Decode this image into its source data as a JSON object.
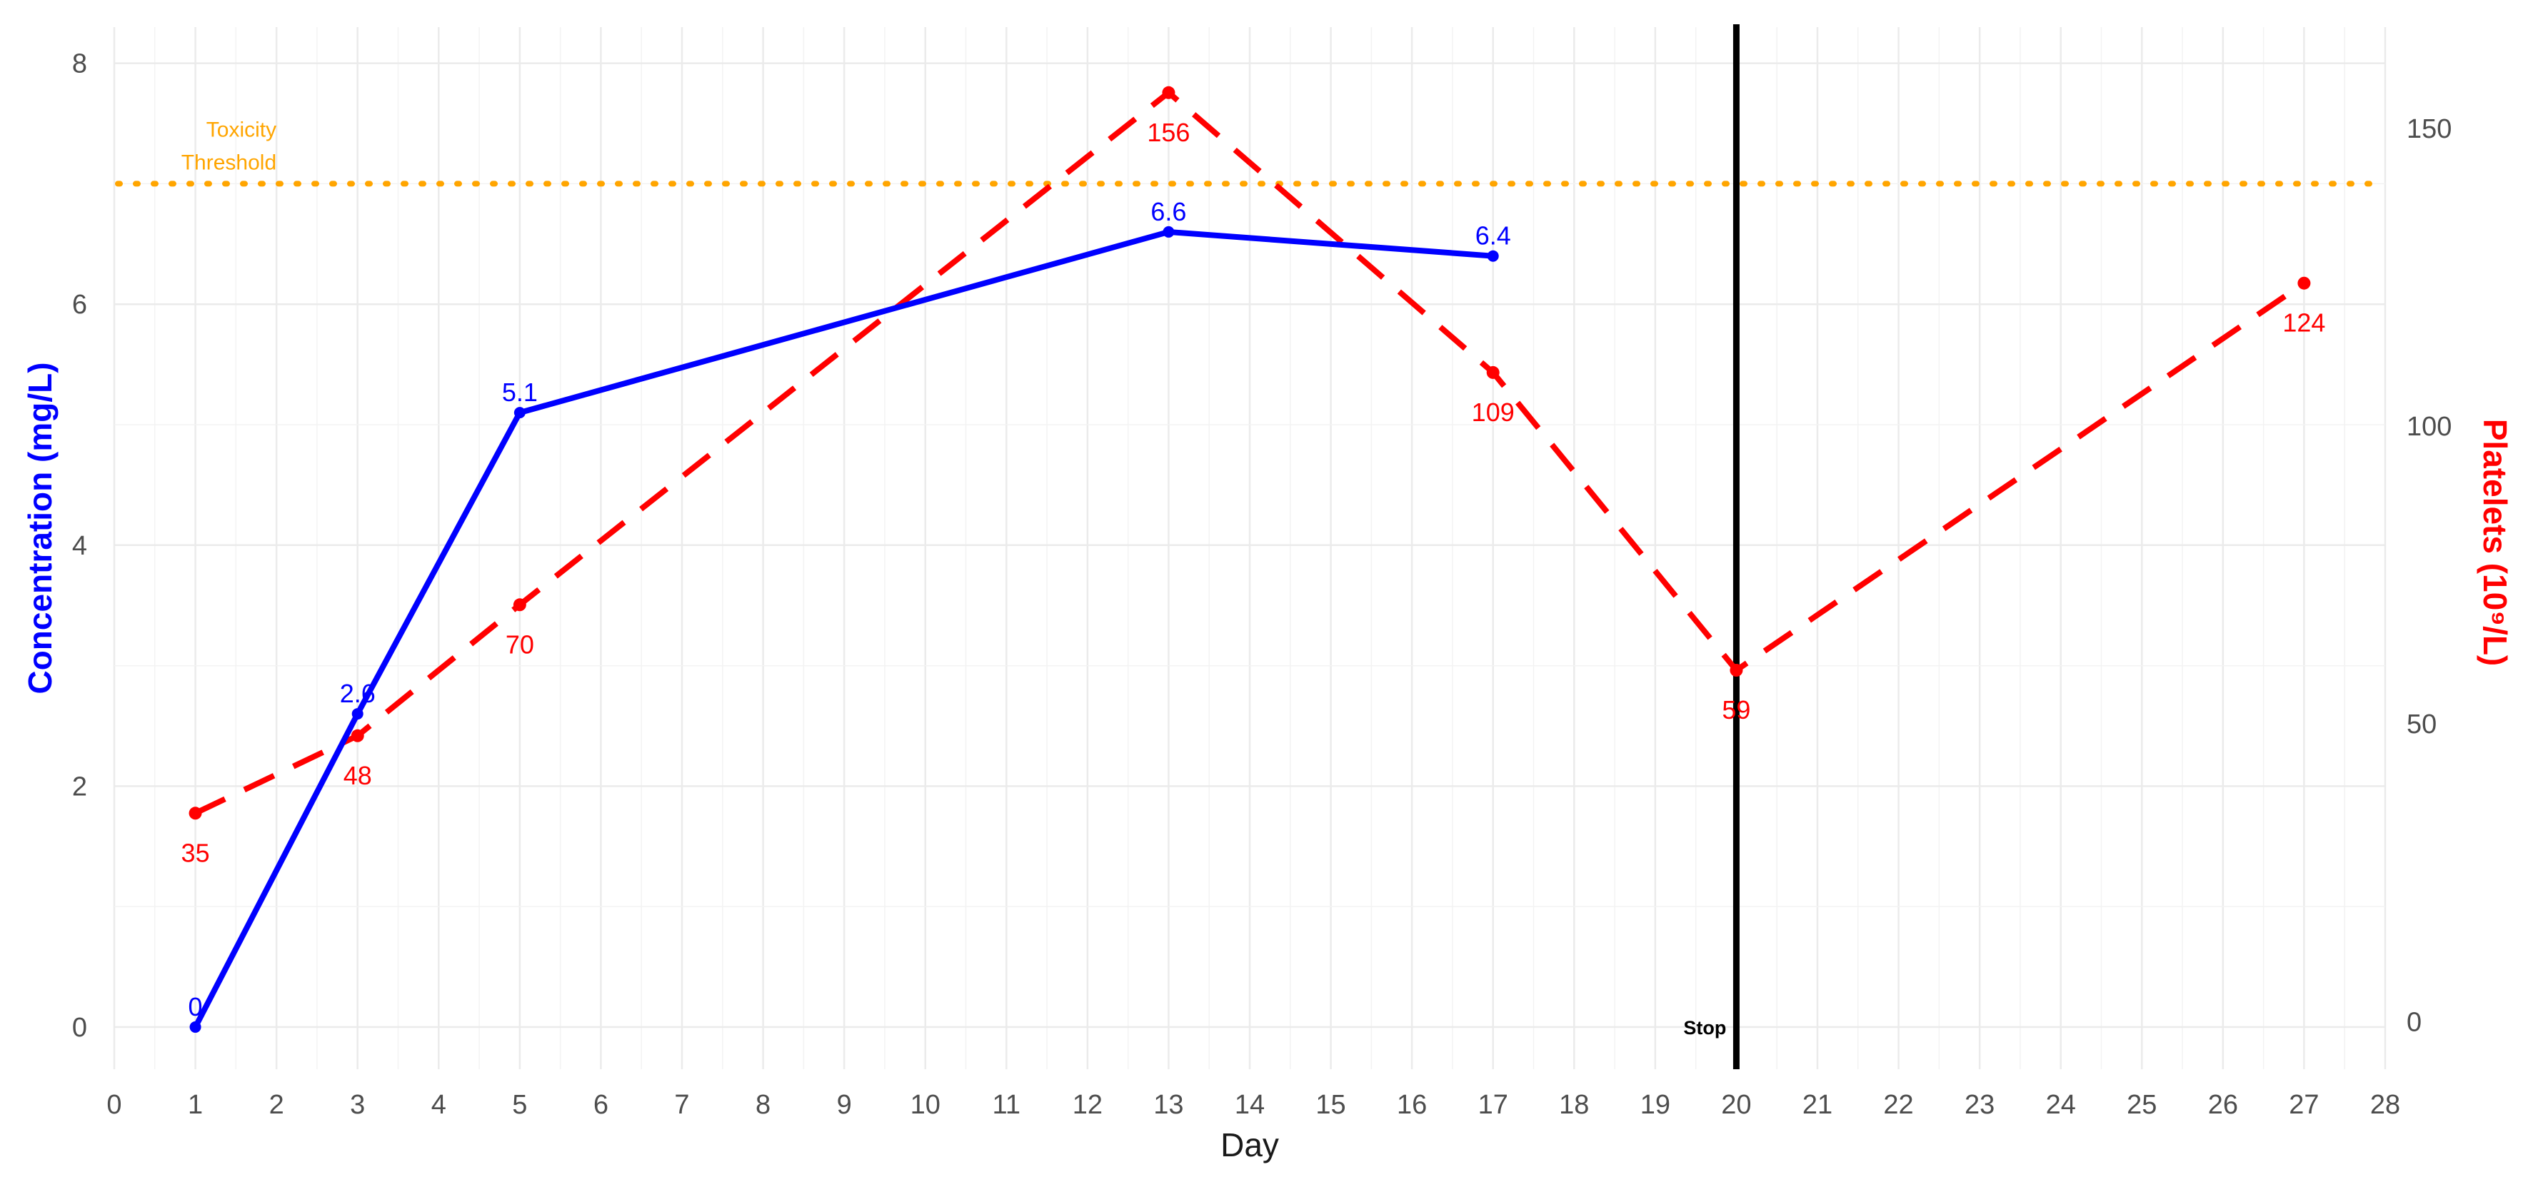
{
  "chart_data": {
    "type": "line",
    "title": "",
    "xlabel": "Day",
    "ylabel_left": "Concentration (mg/L)",
    "ylabel_right": "Platelets (10⁹/L)",
    "xlim": [
      0,
      28
    ],
    "ylim_left": [
      -0.35,
      8.3
    ],
    "ylim_right": [
      -8,
      167
    ],
    "x_ticks": [
      0,
      1,
      2,
      3,
      4,
      5,
      6,
      7,
      8,
      9,
      10,
      11,
      12,
      13,
      14,
      15,
      16,
      17,
      18,
      19,
      20,
      21,
      22,
      23,
      24,
      25,
      26,
      27,
      28
    ],
    "x_tick_labels": [
      "0",
      "1",
      "2",
      "3",
      "4",
      "5",
      "6",
      "7",
      "8",
      "9",
      "10",
      "11",
      "12",
      "13",
      "14",
      "15",
      "16",
      "17",
      "18",
      "19",
      "20",
      "21",
      "22",
      "23",
      "24",
      "25",
      "26",
      "27",
      "28"
    ],
    "y_left_ticks": [
      0,
      2,
      4,
      6,
      8
    ],
    "y_left_tick_labels": [
      "0",
      "2",
      "4",
      "6",
      "8"
    ],
    "y_right_ticks": [
      0,
      50,
      100,
      150
    ],
    "y_right_tick_labels": [
      "0",
      "50",
      "100",
      "150"
    ],
    "grid": true,
    "legend": "none",
    "series": [
      {
        "axis": "left",
        "color": "#0000ff",
        "line_style": "solid",
        "x": [
          1,
          3,
          5,
          13,
          17
        ],
        "values": [
          0,
          2.6,
          5.1,
          6.6,
          6.4
        ],
        "labels": [
          "0",
          "2.6",
          "5.1",
          "6.6",
          "6.4"
        ]
      },
      {
        "axis": "right",
        "color": "#ff0000",
        "line_style": "dashed",
        "x": [
          1,
          3,
          5,
          13,
          17,
          20,
          27
        ],
        "values": [
          35,
          48,
          70,
          156,
          109,
          59,
          124
        ],
        "labels": [
          "35",
          "48",
          "70",
          "156",
          "109",
          "59",
          "124"
        ]
      }
    ],
    "hlines": [
      {
        "axis": "left",
        "y": 7,
        "color": "#ffa500",
        "style": "dotted",
        "label": "Toxicity\nThreshold",
        "label_lines": [
          "Toxicity",
          "Threshold"
        ]
      }
    ],
    "vlines": [
      {
        "x": 20,
        "color": "#000000",
        "style": "solid",
        "label": "Stop"
      }
    ]
  }
}
